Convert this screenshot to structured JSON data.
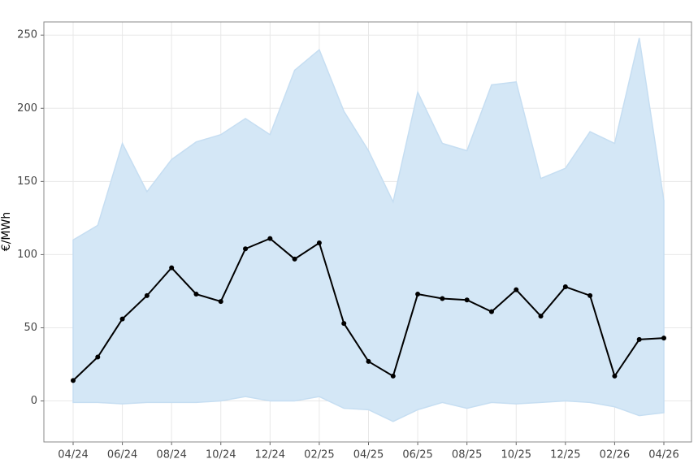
{
  "chart_data": {
    "type": "line",
    "y_label": "€/MWh",
    "categories": [
      "04/24",
      null,
      "06/24",
      null,
      "08/24",
      null,
      "10/24",
      null,
      "12/24",
      null,
      "02/25",
      null,
      "04/25",
      null,
      "06/25",
      null,
      "08/25",
      null,
      "10/25",
      null,
      "12/25",
      null,
      "02/26",
      null,
      "04/26"
    ],
    "series": [
      {
        "color": "#000000",
        "values": [
          14,
          30,
          56,
          72,
          91,
          73,
          68,
          104,
          111,
          97,
          108,
          53,
          27,
          17,
          73,
          70,
          69,
          61,
          76,
          58,
          78,
          72,
          17,
          42,
          43
        ]
      }
    ],
    "band": {
      "color": "#d4e7f6",
      "upper": [
        110,
        120,
        176,
        143,
        165,
        177,
        182,
        193,
        182,
        226,
        240,
        198,
        171,
        136,
        211,
        176,
        171,
        216,
        218,
        152,
        159,
        184,
        176,
        248,
        137
      ],
      "lower": [
        -1,
        -1,
        -2,
        -1,
        -1,
        -1,
        0,
        3,
        0,
        0,
        3,
        -5,
        -6,
        -14,
        -6,
        -1,
        -5,
        -1,
        -2,
        -1,
        0,
        -1,
        -4,
        -10,
        -8
      ]
    },
    "ylim": [
      -28,
      259
    ],
    "yticks": [
      0,
      50,
      100,
      150,
      200,
      250
    ],
    "grid": true
  }
}
